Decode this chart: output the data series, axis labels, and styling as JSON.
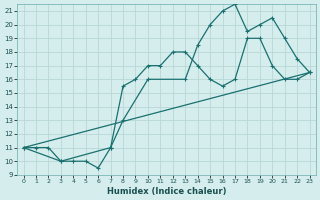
{
  "xlabel": "Humidex (Indice chaleur)",
  "xlim": [
    -0.5,
    23.5
  ],
  "ylim": [
    9,
    21.5
  ],
  "yticks": [
    9,
    10,
    11,
    12,
    13,
    14,
    15,
    16,
    17,
    18,
    19,
    20,
    21
  ],
  "xticks": [
    0,
    1,
    2,
    3,
    4,
    5,
    6,
    7,
    8,
    9,
    10,
    11,
    12,
    13,
    14,
    15,
    16,
    17,
    18,
    19,
    20,
    21,
    22,
    23
  ],
  "bg_color": "#d5eeed",
  "grid_color": "#b8d8d5",
  "line_color": "#1a7070",
  "line1_x": [
    0,
    1,
    2,
    3,
    4,
    5,
    6,
    7,
    8,
    9,
    10,
    11,
    12,
    13,
    14,
    15,
    16,
    17,
    18,
    19,
    20,
    21,
    22,
    23
  ],
  "line1_y": [
    11,
    11,
    11,
    10,
    10,
    10,
    9.5,
    11,
    15.5,
    16,
    17,
    17,
    18,
    18,
    17,
    16,
    15.5,
    16,
    19,
    19,
    17,
    16,
    16,
    16.5
  ],
  "line2_x": [
    0,
    3,
    7,
    8,
    10,
    13,
    14,
    15,
    16,
    17,
    18,
    19,
    20,
    21,
    22,
    23
  ],
  "line2_y": [
    11,
    10,
    11,
    13,
    16,
    16,
    18.5,
    20,
    21,
    21.5,
    19.5,
    20,
    20.5,
    19,
    17.5,
    16.5
  ],
  "line3_x": [
    0,
    23
  ],
  "line3_y": [
    11,
    16.5
  ]
}
